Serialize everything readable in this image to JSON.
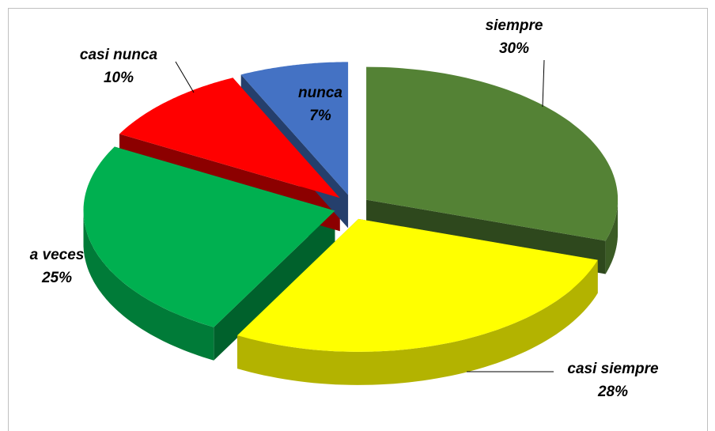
{
  "chart_data": {
    "type": "pie",
    "categories": [
      "siempre",
      "casi siempre",
      "a veces",
      "casi nunca",
      "nunca"
    ],
    "values": [
      30,
      28,
      25,
      10,
      7
    ],
    "value_labels": [
      "30%",
      "28%",
      "25%",
      "10%",
      "7%"
    ],
    "colors": [
      "#548235",
      "#ffff00",
      "#00b050",
      "#ff0000",
      "#4472c4"
    ]
  }
}
